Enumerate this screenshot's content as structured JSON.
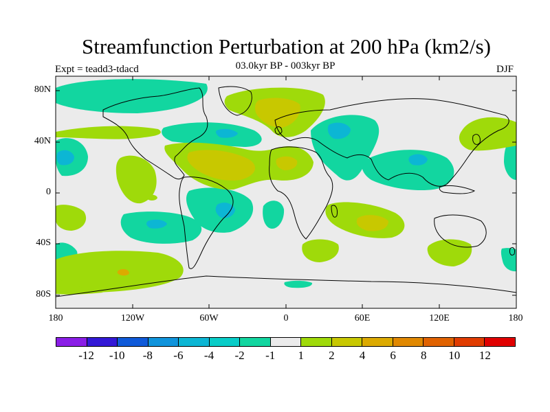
{
  "title": "Streamfunction Perturbation at 200 hPa (km2/s)",
  "experiment": "Expt = teadd3-tdacd",
  "period": "03.0kyr BP - 003kyr BP",
  "season": "DJF",
  "lat_axis": [
    "80N",
    "40N",
    "0",
    "40S",
    "80S"
  ],
  "lon_axis": [
    "180",
    "120W",
    "60W",
    "0",
    "60E",
    "120E",
    "180"
  ],
  "colorbar": {
    "labels": [
      "-12",
      "-10",
      "-8",
      "-6",
      "-4",
      "-2",
      "-1",
      "1",
      "2",
      "4",
      "6",
      "8",
      "10",
      "12"
    ],
    "colors": [
      "#8a1ee6",
      "#3319d6",
      "#0f5ad9",
      "#1094dc",
      "#0cb6d4",
      "#08cdc8",
      "#12d6a0",
      "#ebebeb",
      "#9fda0a",
      "#c8c800",
      "#dcaa00",
      "#e08800",
      "#e06200",
      "#e03c00",
      "#e00000"
    ]
  }
}
